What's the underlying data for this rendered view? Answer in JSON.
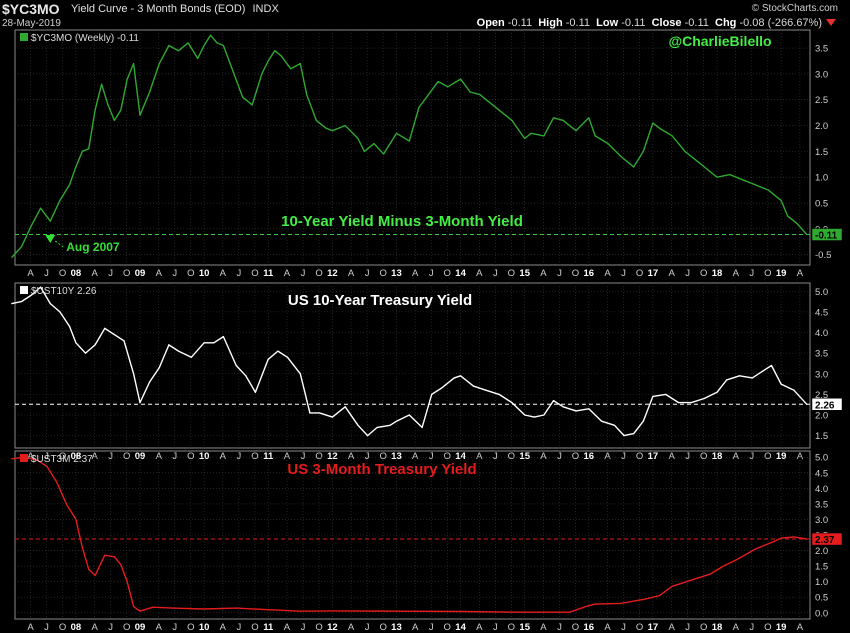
{
  "header": {
    "symbol": "$YC3MO",
    "description": "Yield Curve - 3 Month Bonds (EOD)",
    "exchange": "INDX",
    "date": "28-May-2019",
    "brand": "© StockCharts.com",
    "open": "-0.11",
    "high": "-0.11",
    "low": "-0.11",
    "close": "-0.11",
    "chg": "-0.08 (-266.67%)",
    "labels": {
      "open": "Open",
      "high": "High",
      "low": "Low",
      "close": "Close",
      "chg": "Chg"
    }
  },
  "colors": {
    "background": "#000000",
    "grid": "#3a3a3a",
    "panel_border": "#8a8a8a",
    "spread": "#2fa92f",
    "spread_title": "#44ee44",
    "ten_year": "#ffffff",
    "three_month": "#e51c1c",
    "dashed_zero": "#3ac43a",
    "annotation": "#33e033",
    "axis_text": "#cfcfcf"
  },
  "x_axis": {
    "ticks": [
      {
        "t": 2007.292,
        "label": "A"
      },
      {
        "t": 2007.542,
        "label": "J"
      },
      {
        "t": 2007.792,
        "label": "O"
      },
      {
        "t": 2008.0,
        "label": "08",
        "bold": true
      },
      {
        "t": 2008.292,
        "label": "A"
      },
      {
        "t": 2008.542,
        "label": "J"
      },
      {
        "t": 2008.792,
        "label": "O"
      },
      {
        "t": 2009.0,
        "label": "09",
        "bold": true
      },
      {
        "t": 2009.292,
        "label": "A"
      },
      {
        "t": 2009.542,
        "label": "J"
      },
      {
        "t": 2009.792,
        "label": "O"
      },
      {
        "t": 2010.0,
        "label": "10",
        "bold": true
      },
      {
        "t": 2010.292,
        "label": "A"
      },
      {
        "t": 2010.542,
        "label": "J"
      },
      {
        "t": 2010.792,
        "label": "O"
      },
      {
        "t": 2011.0,
        "label": "11",
        "bold": true
      },
      {
        "t": 2011.292,
        "label": "A"
      },
      {
        "t": 2011.542,
        "label": "J"
      },
      {
        "t": 2011.792,
        "label": "O"
      },
      {
        "t": 2012.0,
        "label": "12",
        "bold": true
      },
      {
        "t": 2012.292,
        "label": "A"
      },
      {
        "t": 2012.542,
        "label": "J"
      },
      {
        "t": 2012.792,
        "label": "O"
      },
      {
        "t": 2013.0,
        "label": "13",
        "bold": true
      },
      {
        "t": 2013.292,
        "label": "A"
      },
      {
        "t": 2013.542,
        "label": "J"
      },
      {
        "t": 2013.792,
        "label": "O"
      },
      {
        "t": 2014.0,
        "label": "14",
        "bold": true
      },
      {
        "t": 2014.292,
        "label": "A"
      },
      {
        "t": 2014.542,
        "label": "J"
      },
      {
        "t": 2014.792,
        "label": "O"
      },
      {
        "t": 2015.0,
        "label": "15",
        "bold": true
      },
      {
        "t": 2015.292,
        "label": "A"
      },
      {
        "t": 2015.542,
        "label": "J"
      },
      {
        "t": 2015.792,
        "label": "O"
      },
      {
        "t": 2016.0,
        "label": "16",
        "bold": true
      },
      {
        "t": 2016.292,
        "label": "A"
      },
      {
        "t": 2016.542,
        "label": "J"
      },
      {
        "t": 2016.792,
        "label": "O"
      },
      {
        "t": 2017.0,
        "label": "17",
        "bold": true
      },
      {
        "t": 2017.292,
        "label": "A"
      },
      {
        "t": 2017.542,
        "label": "J"
      },
      {
        "t": 2017.792,
        "label": "O"
      },
      {
        "t": 2018.0,
        "label": "18",
        "bold": true
      },
      {
        "t": 2018.292,
        "label": "A"
      },
      {
        "t": 2018.542,
        "label": "J"
      },
      {
        "t": 2018.792,
        "label": "O"
      },
      {
        "t": 2019.0,
        "label": "19",
        "bold": true
      },
      {
        "t": 2019.292,
        "label": "A"
      }
    ]
  },
  "chart_data": [
    {
      "type": "line",
      "name": "$YC3MO (Weekly) -0.11",
      "title": "10-Year Yield Minus 3-Month Yield",
      "ylim": [
        -0.7,
        3.85
      ],
      "yticks": [
        -0.5,
        0.0,
        0.5,
        1.0,
        1.5,
        2.0,
        2.5,
        3.0,
        3.5
      ],
      "ytick_labels": [
        "-0.5",
        "0.0",
        "0.5",
        "1.0",
        "1.5",
        "2.0",
        "2.5",
        "3.0",
        "3.5"
      ],
      "last_value": "-0.11",
      "reference_line": -0.11,
      "annotation": {
        "text": "Aug 2007",
        "t": 2007.6,
        "value": -0.1
      },
      "watermark": "@CharlieBilello",
      "x": [
        2007.0,
        2007.15,
        2007.3,
        2007.45,
        2007.6,
        2007.75,
        2007.9,
        2008.0,
        2008.1,
        2008.2,
        2008.3,
        2008.4,
        2008.5,
        2008.6,
        2008.7,
        2008.8,
        2008.9,
        2009.0,
        2009.15,
        2009.3,
        2009.45,
        2009.6,
        2009.75,
        2009.9,
        2010.0,
        2010.1,
        2010.2,
        2010.3,
        2010.45,
        2010.6,
        2010.75,
        2010.9,
        2011.0,
        2011.1,
        2011.2,
        2011.35,
        2011.5,
        2011.6,
        2011.75,
        2011.9,
        2012.0,
        2012.2,
        2012.4,
        2012.5,
        2012.65,
        2012.8,
        2013.0,
        2013.2,
        2013.35,
        2013.5,
        2013.65,
        2013.8,
        2014.0,
        2014.15,
        2014.3,
        2014.45,
        2014.6,
        2014.8,
        2015.0,
        2015.1,
        2015.3,
        2015.45,
        2015.6,
        2015.8,
        2016.0,
        2016.1,
        2016.3,
        2016.5,
        2016.7,
        2016.85,
        2017.0,
        2017.1,
        2017.3,
        2017.5,
        2017.7,
        2017.9,
        2018.0,
        2018.2,
        2018.4,
        2018.6,
        2018.8,
        2019.0,
        2019.1,
        2019.25,
        2019.4
      ],
      "values": [
        -0.55,
        -0.35,
        0.05,
        0.4,
        0.15,
        0.55,
        0.85,
        1.2,
        1.5,
        1.55,
        2.3,
        2.8,
        2.4,
        2.1,
        2.3,
        2.9,
        3.2,
        2.2,
        2.65,
        3.2,
        3.55,
        3.45,
        3.6,
        3.3,
        3.55,
        3.75,
        3.6,
        3.55,
        3.05,
        2.55,
        2.4,
        3.0,
        3.25,
        3.45,
        3.35,
        3.1,
        3.2,
        2.6,
        2.1,
        1.95,
        1.9,
        2.0,
        1.75,
        1.5,
        1.65,
        1.45,
        1.85,
        1.7,
        2.35,
        2.6,
        2.85,
        2.75,
        2.9,
        2.65,
        2.6,
        2.45,
        2.3,
        2.1,
        1.75,
        1.85,
        1.8,
        2.15,
        2.1,
        1.9,
        2.15,
        1.8,
        1.65,
        1.4,
        1.2,
        1.5,
        2.05,
        1.95,
        1.8,
        1.5,
        1.3,
        1.1,
        1.0,
        1.05,
        0.95,
        0.85,
        0.75,
        0.55,
        0.25,
        0.1,
        -0.11
      ]
    },
    {
      "type": "line",
      "name": "$UST10Y 2.26",
      "title": "US 10-Year Treasury Yield",
      "ylim": [
        1.2,
        5.2
      ],
      "yticks": [
        1.5,
        2.0,
        2.5,
        3.0,
        3.5,
        4.0,
        4.5,
        5.0
      ],
      "ytick_labels": [
        "1.5",
        "2.0",
        "2.5",
        "3.0",
        "3.5",
        "4.0",
        "4.5",
        "5.0"
      ],
      "last_value": "2.26",
      "reference_line": 2.26,
      "x": [
        2007.0,
        2007.15,
        2007.3,
        2007.45,
        2007.6,
        2007.75,
        2007.9,
        2008.0,
        2008.15,
        2008.3,
        2008.45,
        2008.6,
        2008.75,
        2008.9,
        2009.0,
        2009.15,
        2009.3,
        2009.45,
        2009.6,
        2009.8,
        2010.0,
        2010.15,
        2010.3,
        2010.5,
        2010.65,
        2010.8,
        2011.0,
        2011.15,
        2011.3,
        2011.5,
        2011.65,
        2011.8,
        2012.0,
        2012.2,
        2012.4,
        2012.55,
        2012.7,
        2012.9,
        2013.0,
        2013.2,
        2013.4,
        2013.55,
        2013.7,
        2013.9,
        2014.0,
        2014.2,
        2014.4,
        2014.6,
        2014.8,
        2015.0,
        2015.15,
        2015.3,
        2015.45,
        2015.6,
        2015.8,
        2016.0,
        2016.2,
        2016.4,
        2016.55,
        2016.7,
        2016.85,
        2017.0,
        2017.2,
        2017.4,
        2017.6,
        2017.8,
        2018.0,
        2018.15,
        2018.35,
        2018.55,
        2018.75,
        2018.85,
        2019.0,
        2019.2,
        2019.4
      ],
      "values": [
        4.7,
        4.75,
        4.9,
        5.1,
        4.7,
        4.5,
        4.15,
        3.75,
        3.5,
        3.7,
        4.1,
        3.95,
        3.8,
        3.0,
        2.3,
        2.8,
        3.15,
        3.7,
        3.55,
        3.4,
        3.75,
        3.75,
        3.9,
        3.2,
        2.95,
        2.55,
        3.35,
        3.55,
        3.4,
        3.0,
        2.05,
        2.05,
        1.95,
        2.2,
        1.75,
        1.5,
        1.7,
        1.75,
        1.85,
        2.0,
        1.7,
        2.5,
        2.65,
        2.9,
        2.95,
        2.7,
        2.6,
        2.5,
        2.3,
        2.0,
        1.95,
        2.0,
        2.35,
        2.2,
        2.1,
        2.15,
        1.85,
        1.75,
        1.5,
        1.55,
        1.85,
        2.45,
        2.5,
        2.3,
        2.3,
        2.4,
        2.55,
        2.85,
        2.95,
        2.9,
        3.1,
        3.2,
        2.75,
        2.6,
        2.26
      ]
    },
    {
      "type": "line",
      "name": "$UST3M 2.37",
      "title": "US 3-Month Treasury Yield",
      "ylim": [
        -0.2,
        5.2
      ],
      "yticks": [
        0.0,
        0.5,
        1.0,
        1.5,
        2.0,
        2.5,
        3.0,
        3.5,
        4.0,
        4.5,
        5.0
      ],
      "ytick_labels": [
        "0.0",
        "0.5",
        "1.0",
        "1.5",
        "2.0",
        "2.5",
        "3.0",
        "3.5",
        "4.0",
        "4.5",
        "5.0"
      ],
      "last_value": "2.37",
      "reference_line": 2.37,
      "x": [
        2007.0,
        2007.2,
        2007.4,
        2007.55,
        2007.7,
        2007.85,
        2008.0,
        2008.1,
        2008.2,
        2008.3,
        2008.45,
        2008.6,
        2008.7,
        2008.8,
        2008.9,
        2009.0,
        2009.2,
        2009.5,
        2010.0,
        2010.5,
        2011.0,
        2011.5,
        2012.0,
        2013.0,
        2014.0,
        2015.0,
        2015.7,
        2015.95,
        2016.1,
        2016.5,
        2016.9,
        2017.1,
        2017.3,
        2017.6,
        2017.9,
        2018.1,
        2018.3,
        2018.6,
        2018.9,
        2019.0,
        2019.2,
        2019.4
      ],
      "values": [
        4.95,
        5.0,
        4.9,
        4.7,
        4.2,
        3.5,
        3.0,
        2.1,
        1.4,
        1.2,
        1.85,
        1.8,
        1.55,
        1.0,
        0.2,
        0.05,
        0.18,
        0.15,
        0.12,
        0.15,
        0.1,
        0.05,
        0.06,
        0.05,
        0.04,
        0.02,
        0.02,
        0.2,
        0.28,
        0.3,
        0.45,
        0.55,
        0.85,
        1.05,
        1.25,
        1.5,
        1.7,
        2.05,
        2.3,
        2.4,
        2.44,
        2.37
      ]
    }
  ]
}
